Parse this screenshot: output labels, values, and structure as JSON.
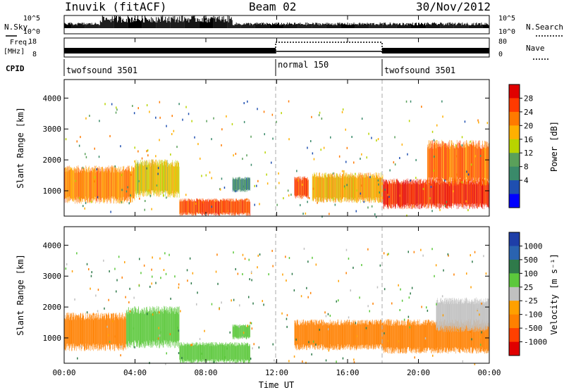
{
  "header": {
    "station": "Inuvik (fitACF)",
    "beam": "Beam 02",
    "date": "30/Nov/2012"
  },
  "nsky_panel": {
    "left_label": "N.Sky",
    "left_ticks": [
      "10^5",
      "10^0"
    ],
    "right_label": "N.Search",
    "right_ticks": [
      "10^5",
      "10^0"
    ]
  },
  "freq_panel": {
    "left_label_1": "Freq.",
    "left_label_2": "[MHz]",
    "left_ticks": [
      "18",
      "8"
    ],
    "right_label": "Nave",
    "right_ticks": [
      "80",
      "0"
    ]
  },
  "cpid_panel": {
    "label": "CPID",
    "segments": [
      {
        "start_hour": 0,
        "end_hour": 12,
        "name": "twofsound 3501"
      },
      {
        "start_hour": 12,
        "end_hour": 18,
        "name": "normal 150"
      },
      {
        "start_hour": 18,
        "end_hour": 24,
        "name": "twofsound 3501"
      }
    ]
  },
  "power_colorbar": {
    "title": "Power [dB]",
    "labels": [
      "28",
      "24",
      "20",
      "16",
      "12",
      "8",
      "4"
    ],
    "colors": [
      "#e00000",
      "#ff3a00",
      "#ff7a00",
      "#ffb000",
      "#b8d400",
      "#5aa05a",
      "#3a8a6a",
      "#1f4fb0",
      "#0000ff"
    ]
  },
  "velocity_colorbar": {
    "title": "Velocity [m s⁻¹]",
    "labels": [
      "1000",
      "500",
      "100",
      "25",
      "-25",
      "-100",
      "-500",
      "-1000"
    ],
    "colors": [
      "#1e3ea8",
      "#2a63b0",
      "#2f7a4a",
      "#5cc83c",
      "#c0c0c0",
      "#ffa000",
      "#ff8000",
      "#ff4000",
      "#e00000"
    ]
  },
  "chart_data": [
    {
      "type": "heatmap",
      "panel": "power",
      "ylabel": "Slant Range [km]",
      "ylim": [
        180,
        4600
      ],
      "y_ticks": [
        1000,
        2000,
        3000,
        4000
      ],
      "xlim": [
        0,
        24
      ],
      "cmap_label": "Power [dB]",
      "regions": [
        {
          "x0": 0,
          "x1": 4,
          "y0": 700,
          "y1": 1700,
          "value": 22
        },
        {
          "x0": 4,
          "x1": 6.5,
          "y0": 900,
          "y1": 1900,
          "value": 18
        },
        {
          "x0": 6.5,
          "x1": 10.5,
          "y0": 250,
          "y1": 700,
          "value": 26
        },
        {
          "x0": 9.5,
          "x1": 10.5,
          "y0": 1000,
          "y1": 1400,
          "value": 10
        },
        {
          "x0": 13,
          "x1": 13.8,
          "y0": 800,
          "y1": 1400,
          "value": 26
        },
        {
          "x0": 14,
          "x1": 18,
          "y0": 700,
          "y1": 1500,
          "value": 20
        },
        {
          "x0": 18,
          "x1": 24,
          "y0": 500,
          "y1": 1300,
          "value": 28
        },
        {
          "x0": 20.5,
          "x1": 24,
          "y0": 1300,
          "y1": 2500,
          "value": 24
        }
      ]
    },
    {
      "type": "heatmap",
      "panel": "velocity",
      "ylabel": "Slant Range [km]",
      "ylim": [
        180,
        4600
      ],
      "y_ticks": [
        1000,
        2000,
        3000,
        4000
      ],
      "xlim": [
        0,
        24
      ],
      "xlabel": "Time UT",
      "x_ticks": [
        "00:00",
        "04:00",
        "08:00",
        "12:00",
        "16:00",
        "20:00",
        "00:00"
      ],
      "cmap_label": "Velocity [m s⁻¹]",
      "regions": [
        {
          "x0": 0,
          "x1": 3.5,
          "y0": 700,
          "y1": 1700,
          "value": -150
        },
        {
          "x0": 3.5,
          "x1": 6.5,
          "y0": 800,
          "y1": 1900,
          "value": 80
        },
        {
          "x0": 6.5,
          "x1": 10.5,
          "y0": 250,
          "y1": 800,
          "value": 40
        },
        {
          "x0": 9.5,
          "x1": 10.5,
          "y0": 1000,
          "y1": 1400,
          "value": 80
        },
        {
          "x0": 13,
          "x1": 18,
          "y0": 700,
          "y1": 1500,
          "value": -200
        },
        {
          "x0": 18,
          "x1": 24,
          "y0": 600,
          "y1": 1500,
          "value": -200
        },
        {
          "x0": 21,
          "x1": 24,
          "y0": 1300,
          "y1": 2200,
          "value": 0
        }
      ]
    }
  ]
}
